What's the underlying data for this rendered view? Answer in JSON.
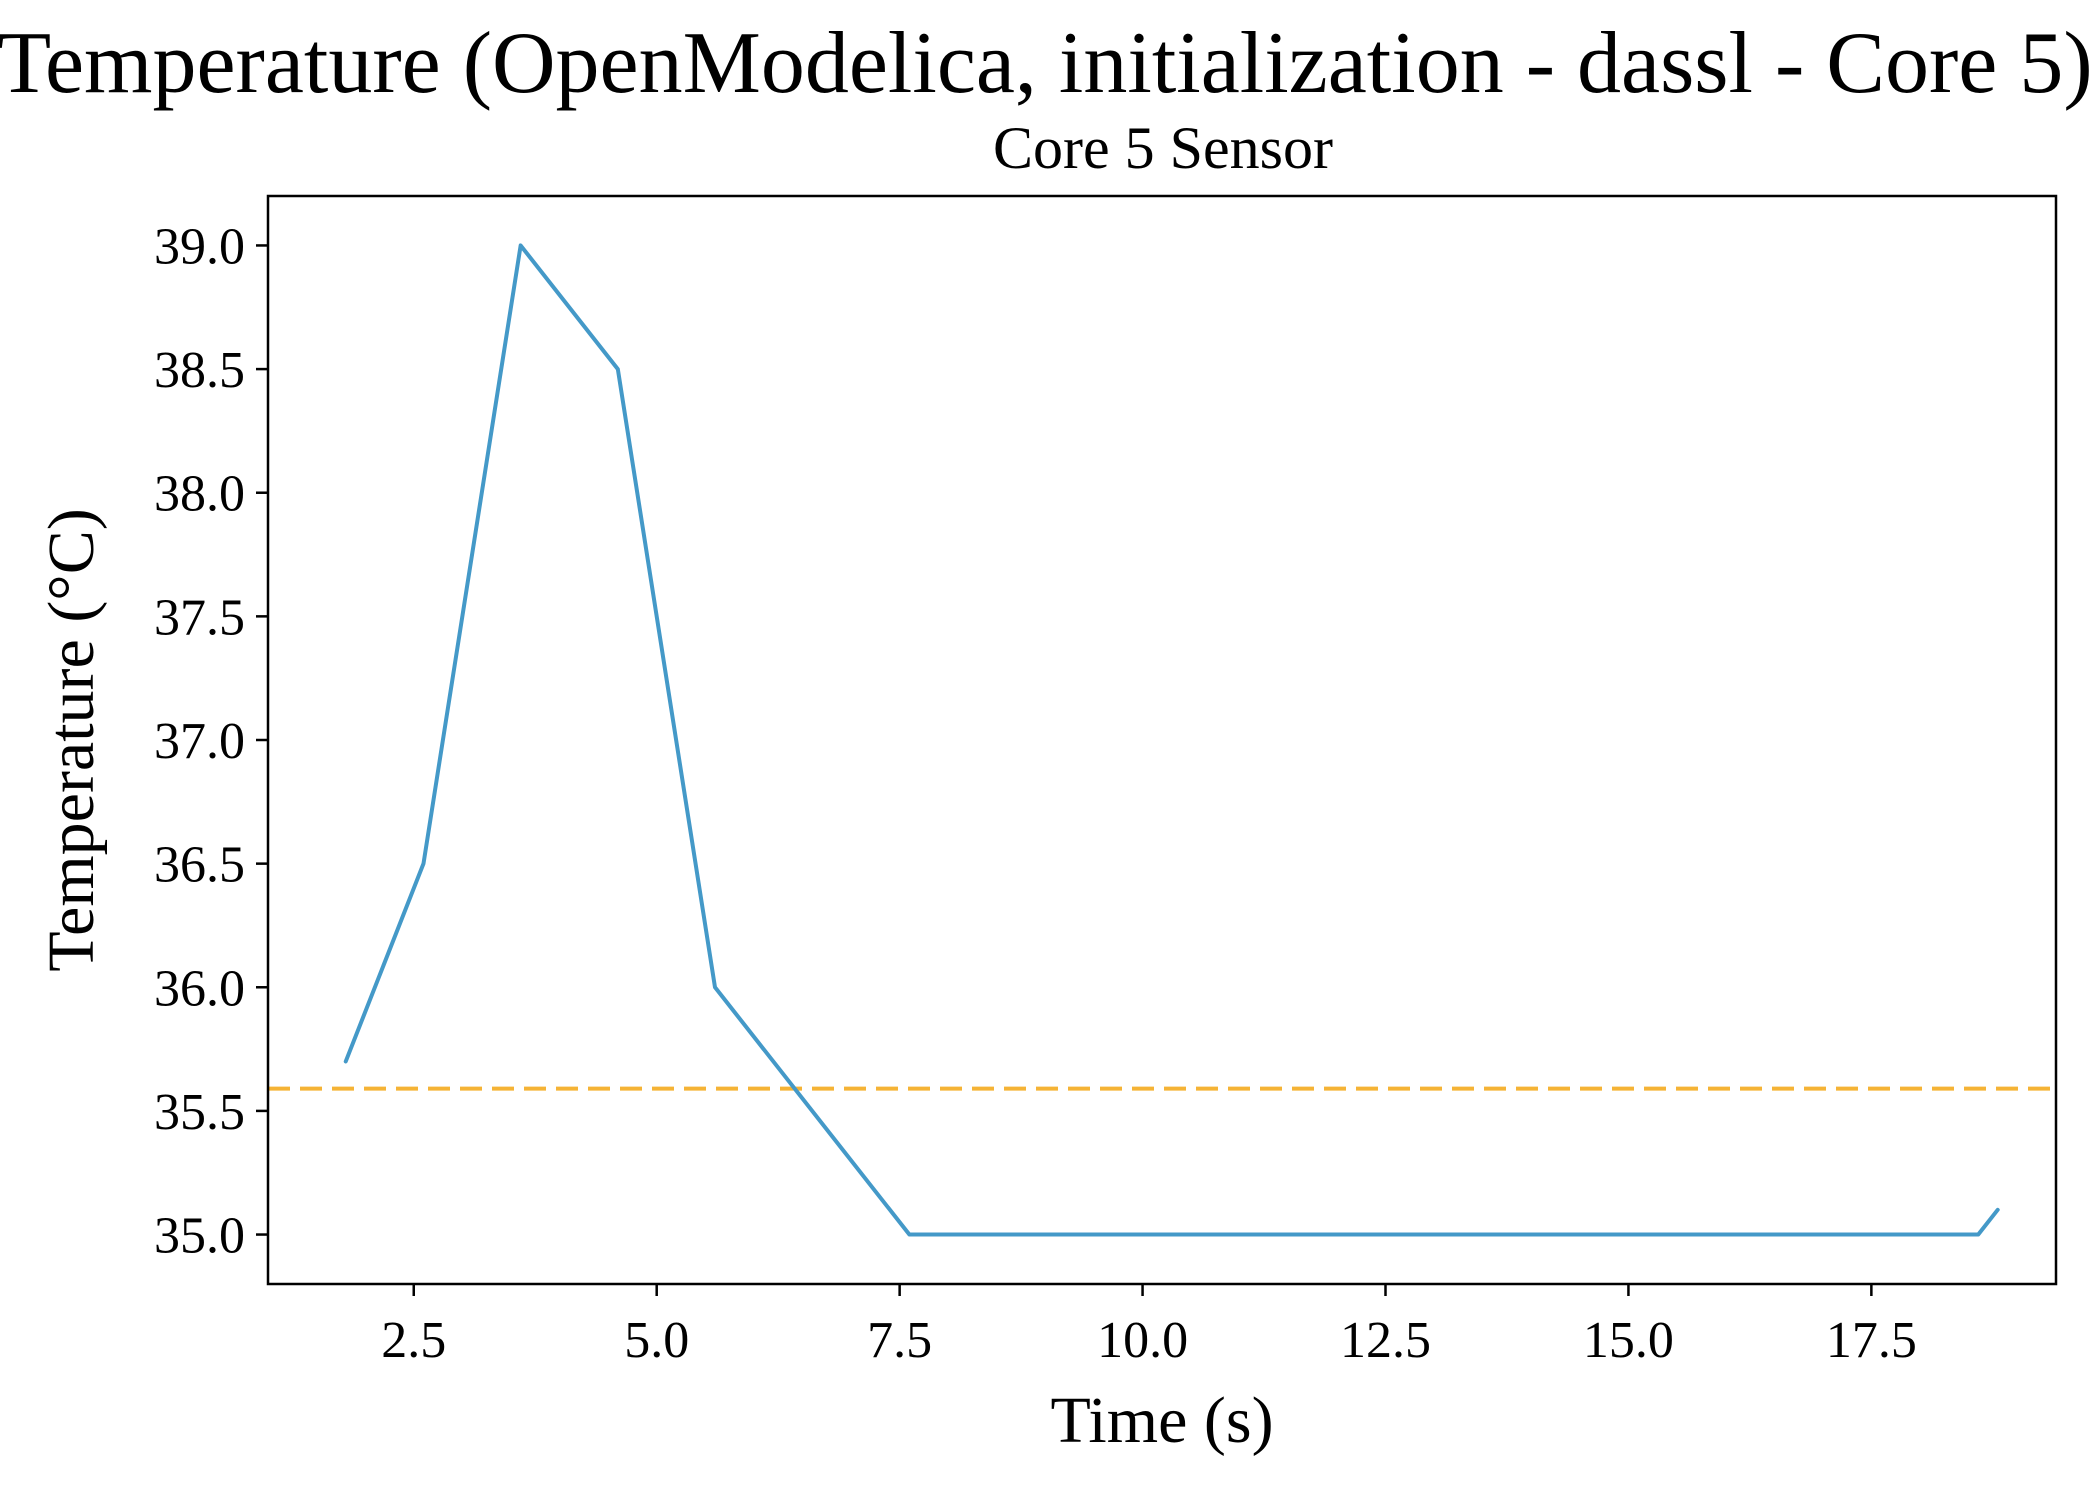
{
  "chart_data": {
    "type": "line",
    "suptitle": "Temperature (OpenModelica, initialization - dassl - Core 5)",
    "title": "Core 5 Sensor",
    "xlabel": "Time (s)",
    "ylabel": "Temperature (°C)",
    "xlim": [
      1.0,
      19.4
    ],
    "ylim": [
      34.8,
      39.2
    ],
    "xticks": [
      "2.5",
      "5.0",
      "7.5",
      "10.0",
      "12.5",
      "15.0",
      "17.5"
    ],
    "yticks": [
      "35.0",
      "35.5",
      "36.0",
      "36.5",
      "37.0",
      "37.5",
      "38.0",
      "38.5",
      "39.0"
    ],
    "grid": false,
    "series": [
      {
        "color": "#4499C8",
        "style": "solid",
        "x": [
          1.8,
          2.6,
          3.6,
          4.6,
          5.6,
          7.6,
          18.6,
          18.8
        ],
        "y": [
          35.7,
          36.5,
          39.0,
          38.5,
          36.0,
          35.0,
          35.0,
          35.1
        ]
      }
    ],
    "reference_lines": [
      {
        "orientation": "horizontal",
        "y": 35.59,
        "color": "#F5B335",
        "style": "dashed"
      }
    ]
  }
}
